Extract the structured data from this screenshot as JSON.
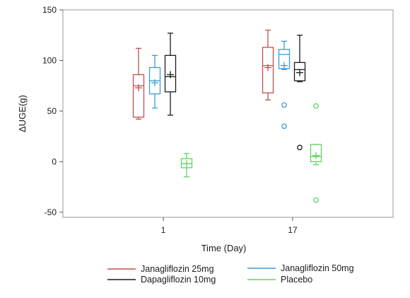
{
  "chart_data": {
    "type": "boxplot",
    "xlabel": "Time (Day)",
    "ylabel": "ΔUGE(g)",
    "ylim": [
      -55,
      150
    ],
    "yticks": [
      -50,
      0,
      50,
      100,
      150
    ],
    "categories": [
      "1",
      "17"
    ],
    "grid": false,
    "legend_position": "bottom",
    "series": [
      {
        "name": "Janagliflozin 25mg",
        "color": "#c0504d",
        "boxes": [
          {
            "category": "1",
            "whisker_low": 42,
            "q1": 44,
            "median": 75,
            "q3": 86,
            "whisker_high": 112,
            "mean": 73,
            "outliers": []
          },
          {
            "category": "17",
            "whisker_low": 61,
            "q1": 68,
            "median": 95,
            "q3": 113,
            "whisker_high": 130,
            "mean": 93,
            "outliers": []
          }
        ]
      },
      {
        "name": "Janagliflozin 50mg",
        "color": "#3d9ad6",
        "boxes": [
          {
            "category": "1",
            "whisker_low": 53,
            "q1": 67,
            "median": 80,
            "q3": 93,
            "whisker_high": 105,
            "mean": 78,
            "outliers": []
          },
          {
            "category": "17",
            "whisker_low": 91,
            "q1": 92,
            "median": 106,
            "q3": 111,
            "whisker_high": 119,
            "mean": 95,
            "outliers": [
              56,
              35
            ]
          }
        ]
      },
      {
        "name": "Dapagliflozin 10mg",
        "color": "#1a1a1a",
        "boxes": [
          {
            "category": "1",
            "whisker_low": 46,
            "q1": 69,
            "median": 84,
            "q3": 105,
            "whisker_high": 127,
            "mean": 86,
            "outliers": []
          },
          {
            "category": "17",
            "whisker_low": 79,
            "q1": 80,
            "median": 91,
            "q3": 98,
            "whisker_high": 125,
            "mean": 88,
            "outliers": [
              14
            ]
          }
        ]
      },
      {
        "name": "Placebo",
        "color": "#5fd35f",
        "boxes": [
          {
            "category": "1",
            "whisker_low": -15,
            "q1": -6,
            "median": -2,
            "q3": 3,
            "whisker_high": 8,
            "mean": -2,
            "outliers": []
          },
          {
            "category": "17",
            "whisker_low": -3,
            "q1": 0,
            "median": 5,
            "q3": 17,
            "whisker_high": 17,
            "mean": 6,
            "outliers": [
              55,
              -38
            ]
          }
        ]
      }
    ]
  }
}
